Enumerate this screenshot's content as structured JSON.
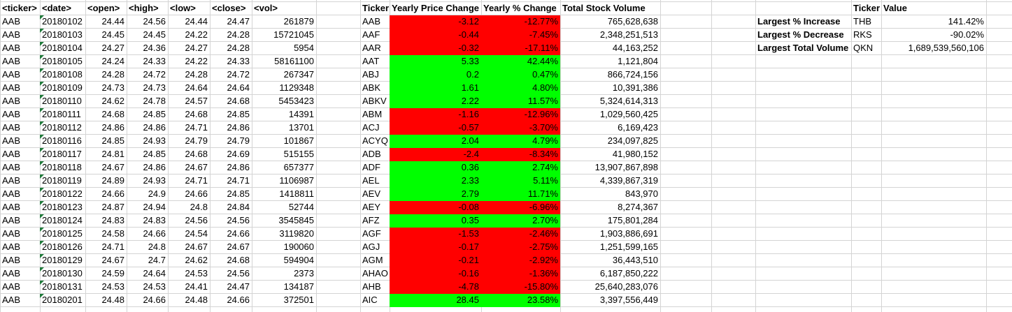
{
  "headers": {
    "ticker": "<ticker>",
    "date": "<date>",
    "open": "<open>",
    "high": "<high>",
    "low": "<low>",
    "close": "<close>",
    "vol": "<vol>",
    "s_ticker": "Ticker",
    "s_change": "Yearly Price Change",
    "s_pct": "Yearly % Change",
    "s_volume": "Total Stock Volume",
    "g_ticker": "Ticker",
    "g_value": "Value"
  },
  "raw_rows": [
    [
      "AAB",
      "20180102",
      "24.44",
      "24.56",
      "24.44",
      "24.47",
      "261879"
    ],
    [
      "AAB",
      "20180103",
      "24.45",
      "24.45",
      "24.22",
      "24.28",
      "15721045"
    ],
    [
      "AAB",
      "20180104",
      "24.27",
      "24.36",
      "24.27",
      "24.28",
      "5954"
    ],
    [
      "AAB",
      "20180105",
      "24.24",
      "24.33",
      "24.22",
      "24.33",
      "58161100"
    ],
    [
      "AAB",
      "20180108",
      "24.28",
      "24.72",
      "24.28",
      "24.72",
      "267347"
    ],
    [
      "AAB",
      "20180109",
      "24.73",
      "24.73",
      "24.64",
      "24.64",
      "1129348"
    ],
    [
      "AAB",
      "20180110",
      "24.62",
      "24.78",
      "24.57",
      "24.68",
      "5453423"
    ],
    [
      "AAB",
      "20180111",
      "24.68",
      "24.85",
      "24.68",
      "24.85",
      "14391"
    ],
    [
      "AAB",
      "20180112",
      "24.86",
      "24.86",
      "24.71",
      "24.86",
      "13701"
    ],
    [
      "AAB",
      "20180116",
      "24.85",
      "24.93",
      "24.79",
      "24.79",
      "101867"
    ],
    [
      "AAB",
      "20180117",
      "24.81",
      "24.85",
      "24.68",
      "24.69",
      "515155"
    ],
    [
      "AAB",
      "20180118",
      "24.67",
      "24.86",
      "24.67",
      "24.86",
      "657377"
    ],
    [
      "AAB",
      "20180119",
      "24.89",
      "24.93",
      "24.71",
      "24.71",
      "1106987"
    ],
    [
      "AAB",
      "20180122",
      "24.66",
      "24.9",
      "24.66",
      "24.85",
      "1418811"
    ],
    [
      "AAB",
      "20180123",
      "24.87",
      "24.94",
      "24.8",
      "24.84",
      "52744"
    ],
    [
      "AAB",
      "20180124",
      "24.83",
      "24.83",
      "24.56",
      "24.56",
      "3545845"
    ],
    [
      "AAB",
      "20180125",
      "24.58",
      "24.66",
      "24.54",
      "24.66",
      "3119820"
    ],
    [
      "AAB",
      "20180126",
      "24.71",
      "24.8",
      "24.67",
      "24.67",
      "190060"
    ],
    [
      "AAB",
      "20180129",
      "24.67",
      "24.7",
      "24.62",
      "24.68",
      "594904"
    ],
    [
      "AAB",
      "20180130",
      "24.59",
      "24.64",
      "24.53",
      "24.56",
      "2373"
    ],
    [
      "AAB",
      "20180131",
      "24.53",
      "24.53",
      "24.41",
      "24.47",
      "134187"
    ],
    [
      "AAB",
      "20180201",
      "24.48",
      "24.66",
      "24.48",
      "24.66",
      "372501"
    ]
  ],
  "summary_rows": [
    {
      "ticker": "AAB",
      "change": "-3.12",
      "pct": "-12.77%",
      "volume": "765,628,638",
      "status": "neg"
    },
    {
      "ticker": "AAF",
      "change": "-0.44",
      "pct": "-7.45%",
      "volume": "2,348,251,513",
      "status": "neg"
    },
    {
      "ticker": "AAR",
      "change": "-0.32",
      "pct": "-17.11%",
      "volume": "44,163,252",
      "status": "neg"
    },
    {
      "ticker": "AAT",
      "change": "5.33",
      "pct": "42.44%",
      "volume": "1,121,804",
      "status": "pos"
    },
    {
      "ticker": "ABJ",
      "change": "0.2",
      "pct": "0.47%",
      "volume": "866,724,156",
      "status": "pos"
    },
    {
      "ticker": "ABK",
      "change": "1.61",
      "pct": "4.80%",
      "volume": "10,391,386",
      "status": "pos"
    },
    {
      "ticker": "ABKV",
      "change": "2.22",
      "pct": "11.57%",
      "volume": "5,324,614,313",
      "status": "pos"
    },
    {
      "ticker": "ABM",
      "change": "-1.16",
      "pct": "-12.96%",
      "volume": "1,029,560,425",
      "status": "neg"
    },
    {
      "ticker": "ACJ",
      "change": "-0.57",
      "pct": "-3.70%",
      "volume": "6,169,423",
      "status": "neg"
    },
    {
      "ticker": "ACYQ",
      "change": "2.04",
      "pct": "4.79%",
      "volume": "234,097,825",
      "status": "pos"
    },
    {
      "ticker": "ADB",
      "change": "-2.4",
      "pct": "-8.34%",
      "volume": "41,980,152",
      "status": "neg"
    },
    {
      "ticker": "ADF",
      "change": "0.36",
      "pct": "2.74%",
      "volume": "13,907,867,898",
      "status": "pos"
    },
    {
      "ticker": "AEL",
      "change": "2.33",
      "pct": "5.11%",
      "volume": "4,339,867,319",
      "status": "pos"
    },
    {
      "ticker": "AEV",
      "change": "2.79",
      "pct": "11.71%",
      "volume": "843,970",
      "status": "pos"
    },
    {
      "ticker": "AEY",
      "change": "-0.08",
      "pct": "-6.96%",
      "volume": "8,274,367",
      "status": "neg"
    },
    {
      "ticker": "AFZ",
      "change": "0.35",
      "pct": "2.70%",
      "volume": "175,801,284",
      "status": "pos"
    },
    {
      "ticker": "AGF",
      "change": "-1.53",
      "pct": "-2.46%",
      "volume": "1,903,886,691",
      "status": "neg"
    },
    {
      "ticker": "AGJ",
      "change": "-0.17",
      "pct": "-2.75%",
      "volume": "1,251,599,165",
      "status": "neg"
    },
    {
      "ticker": "AGM",
      "change": "-0.21",
      "pct": "-2.92%",
      "volume": "36,443,510",
      "status": "neg"
    },
    {
      "ticker": "AHAO",
      "change": "-0.16",
      "pct": "-1.36%",
      "volume": "6,187,850,222",
      "status": "neg"
    },
    {
      "ticker": "AHB",
      "change": "-4.78",
      "pct": "-15.80%",
      "volume": "25,640,283,076",
      "status": "neg"
    },
    {
      "ticker": "AIC",
      "change": "28.45",
      "pct": "23.58%",
      "volume": "3,397,556,449",
      "status": "pos"
    }
  ],
  "greatest": [
    {
      "label": "Largest % Increase",
      "ticker": "THB",
      "value": "141.42%"
    },
    {
      "label": "Largest % Decrease",
      "ticker": "RKS",
      "value": "-90.02%"
    },
    {
      "label": "Largest Total Volume",
      "ticker": "QKN",
      "value": "1,689,539,560,106"
    }
  ],
  "colors": {
    "negative": "#ff0000",
    "positive": "#00ff00",
    "gridline": "#d4d4d4",
    "error_marker": "#1f7a3a"
  }
}
